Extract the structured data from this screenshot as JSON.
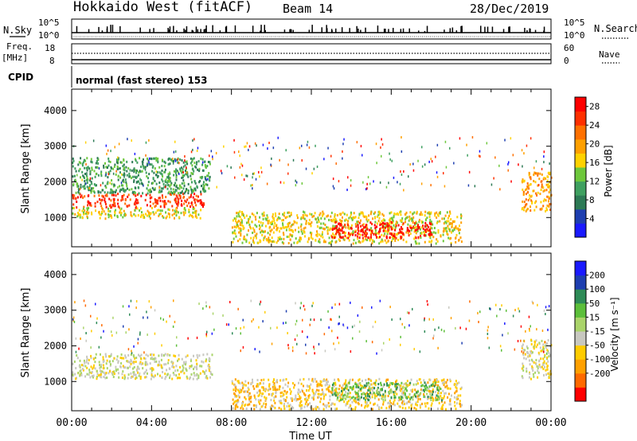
{
  "header": {
    "radar": "Hokkaido West (fitACF)",
    "beam": "Beam 14",
    "date": "28/Dec/2019"
  },
  "nsky_panel": {
    "left_label": "N.Sky",
    "right_label": "N.Search",
    "left_ticks": [
      "10^5",
      "10^0"
    ],
    "right_ticks": [
      "10^5",
      "10^0"
    ]
  },
  "freq_panel": {
    "left_label_1": "Freq.",
    "left_label_2": "[MHz]",
    "right_label": "Nave",
    "left_ticks": [
      "18",
      "8"
    ],
    "right_ticks": [
      "60",
      "0"
    ]
  },
  "cpid": {
    "label": "CPID",
    "mode_text": "normal (fast stereo) 153"
  },
  "colors": {
    "power": [
      "#1a1aff",
      "#1e3fb0",
      "#2d7a55",
      "#3fa060",
      "#6ec83c",
      "#ffd200",
      "#ffa000",
      "#ff7000",
      "#ff3000",
      "#ff0000"
    ],
    "velocity": [
      "#ff0000",
      "#ff6a00",
      "#ffa000",
      "#ffcc00",
      "#c8c8c0",
      "#aad46a",
      "#5cbf3a",
      "#2e8b57",
      "#1e3fb0",
      "#1a1aff"
    ]
  },
  "chart_data": [
    {
      "type": "heatmap",
      "ylabel": "Slant Range [km]",
      "ylim": [
        180,
        4600
      ],
      "yticks": [
        1000,
        2000,
        3000,
        4000
      ],
      "xlim": [
        0,
        24
      ],
      "colorbar": {
        "label": "Power [dB]",
        "ticks": [
          "4",
          "8",
          "12",
          "16",
          "20",
          "24",
          "28"
        ],
        "range": [
          0,
          30
        ]
      },
      "echo_regions": [
        {
          "t0": 0.0,
          "t1": 6.6,
          "r0": 1300,
          "r1": 1700,
          "value": 24
        },
        {
          "t0": 0.0,
          "t1": 6.6,
          "r0": 1000,
          "r1": 1300,
          "value": 14
        },
        {
          "t0": 0.0,
          "t1": 6.9,
          "r0": 1700,
          "r1": 2700,
          "value": 10
        },
        {
          "t0": 8.0,
          "t1": 19.5,
          "r0": 300,
          "r1": 1200,
          "value": 16
        },
        {
          "t0": 13.0,
          "t1": 18.0,
          "r0": 450,
          "r1": 900,
          "value": 26
        },
        {
          "t0": 22.5,
          "t1": 24.0,
          "r0": 1200,
          "r1": 2300,
          "value": 18
        }
      ]
    },
    {
      "type": "heatmap",
      "ylabel": "Slant Range [km]",
      "ylim": [
        180,
        4600
      ],
      "yticks": [
        1000,
        2000,
        3000,
        4000
      ],
      "xlim": [
        0,
        24
      ],
      "xticks": [
        "00:00",
        "04:00",
        "08:00",
        "12:00",
        "16:00",
        "20:00",
        "00:00"
      ],
      "xlabel": "Time UT",
      "colorbar": {
        "label": "Velocity [m s⁻¹]",
        "ticks": [
          "200",
          "100",
          "50",
          "15",
          "-15",
          "-50",
          "-100",
          "-200"
        ]
      },
      "echo_regions": [
        {
          "t0": 0.0,
          "t1": 7.0,
          "r0": 1100,
          "r1": 1800,
          "value": 0
        },
        {
          "t0": 8.0,
          "t1": 19.5,
          "r0": 250,
          "r1": 1100,
          "value": -40
        },
        {
          "t0": 13.0,
          "t1": 18.5,
          "r0": 500,
          "r1": 1000,
          "value": 60
        },
        {
          "t0": 22.5,
          "t1": 24.0,
          "r0": 1100,
          "r1": 2200,
          "value": 0
        }
      ]
    }
  ]
}
